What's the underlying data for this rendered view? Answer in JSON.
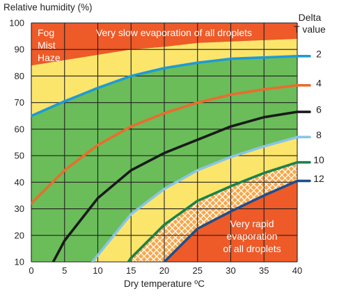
{
  "chart_data": {
    "type": "line",
    "ylabel": "Relative humidity (%)",
    "xlabel": "Dry temperature ºC",
    "xlim": [
      0,
      40
    ],
    "ylim": [
      10,
      100
    ],
    "xticks": [
      "0",
      "5",
      "10",
      "15",
      "20",
      "25",
      "30",
      "35",
      "40"
    ],
    "yticks": [
      "10",
      "20",
      "30",
      "40",
      "50",
      "60",
      "70",
      "80",
      "90",
      "100"
    ],
    "grid": true,
    "legend_title": [
      "Delta",
      "T value"
    ],
    "legend_placement": "right",
    "annotations": {
      "fog": [
        "Fog",
        "Mist",
        "Haze"
      ],
      "slow": "Very slow evaporation of all droplets",
      "rapid": [
        "Very rapid",
        "evaporation",
        "of all droplets"
      ]
    },
    "colors": {
      "background_green": "#6abd59",
      "yellow_zone": "#fce56b",
      "orange_zone": "#ee5a28",
      "hatch_zone": "#f7a84a",
      "grid": "#231f20"
    },
    "zone_boundaries": {
      "fog_upper_boundary": [
        [
          0,
          84
        ],
        [
          5,
          86
        ],
        [
          10,
          88
        ],
        [
          15,
          90
        ],
        [
          20,
          91
        ],
        [
          25,
          92.5
        ],
        [
          30,
          93
        ],
        [
          35,
          93.5
        ],
        [
          40,
          94
        ]
      ],
      "green_upper_boundary": [
        [
          0,
          76
        ],
        [
          5,
          79.5
        ],
        [
          10,
          82.5
        ],
        [
          15,
          85
        ],
        [
          20,
          87
        ],
        [
          25,
          88.5
        ],
        [
          30,
          89.5
        ],
        [
          35,
          90
        ],
        [
          40,
          90.5
        ]
      ]
    },
    "series": [
      {
        "name": "2",
        "color": "#1e9ad6",
        "x": [
          0,
          5,
          10,
          15,
          20,
          25,
          30,
          35,
          40
        ],
        "y": [
          65,
          70.5,
          75.5,
          80,
          83,
          85,
          86.5,
          87,
          87.5
        ]
      },
      {
        "name": "4",
        "color": "#ec6b2d",
        "x": [
          0,
          5,
          10,
          15,
          20,
          25,
          30,
          35,
          40
        ],
        "y": [
          32,
          44.5,
          54,
          61,
          66,
          70,
          73,
          75,
          76.5
        ]
      },
      {
        "name": "6",
        "color": "#1a1a1a",
        "x": [
          3.3,
          5,
          10,
          15,
          20,
          25,
          30,
          35,
          40
        ],
        "y": [
          10,
          18,
          34,
          44.5,
          51,
          56,
          61,
          64.5,
          66.5
        ]
      },
      {
        "name": "8",
        "color": "#89c4e8",
        "x": [
          9.2,
          10,
          15,
          20,
          25,
          30,
          35,
          40
        ],
        "y": [
          10,
          12.5,
          28,
          37.5,
          44.5,
          49.5,
          53.5,
          57
        ]
      },
      {
        "name": "10",
        "color": "#18834a",
        "x": [
          14.6,
          15,
          20,
          25,
          30,
          35,
          40
        ],
        "y": [
          10,
          11.5,
          24,
          33,
          38.5,
          43.5,
          47.5
        ]
      },
      {
        "name": "12",
        "color": "#1f4e8c",
        "x": [
          20,
          25,
          30,
          35,
          40
        ],
        "y": [
          10,
          22.5,
          29,
          35,
          40.5
        ]
      }
    ]
  }
}
